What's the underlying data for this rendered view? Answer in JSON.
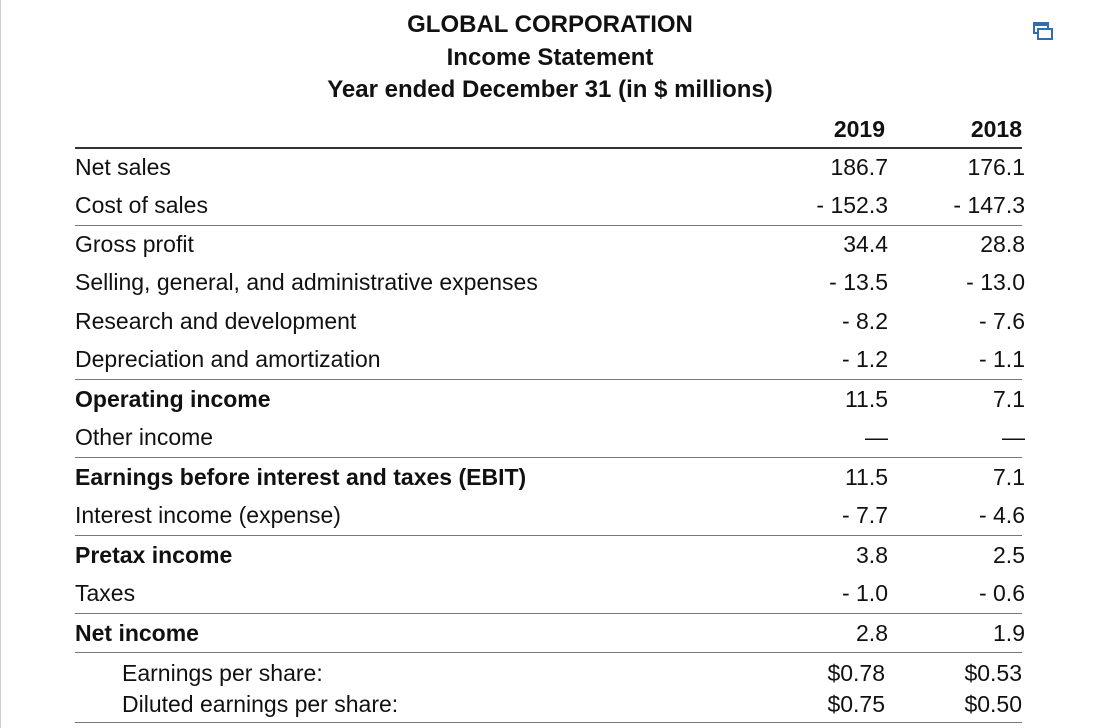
{
  "header": {
    "company": "GLOBAL  CORPORATION",
    "statement": "Income Statement",
    "period": "Year ended December 31 (in $ millions)"
  },
  "columns": {
    "year1": "2019",
    "year2": "2018"
  },
  "rows": [
    {
      "label": "Net sales",
      "v1": "186.7",
      "v2": "176.1"
    },
    {
      "label": "Cost of sales",
      "v1": "- 152.3",
      "v2": "- 147.3"
    },
    {
      "label": "Gross profit",
      "v1": "34.4",
      "v2": "28.8"
    },
    {
      "label": "Selling, general, and administrative expenses",
      "v1": "- 13.5",
      "v2": "- 13.0"
    },
    {
      "label": "Research and development",
      "v1": "- 8.2",
      "v2": "- 7.6"
    },
    {
      "label": "Depreciation and amortization",
      "v1": "- 1.2",
      "v2": "- 1.1"
    },
    {
      "label": "Operating income",
      "v1": "11.5",
      "v2": "7.1"
    },
    {
      "label": "Other income",
      "v1": "—",
      "v2": "—"
    },
    {
      "label": "Earnings before interest and taxes (EBIT)",
      "v1": "11.5",
      "v2": "7.1"
    },
    {
      "label": "Interest income (expense)",
      "v1": "- 7.7",
      "v2": "- 4.6"
    },
    {
      "label": "Pretax income",
      "v1": "3.8",
      "v2": "2.5"
    },
    {
      "label": "Taxes",
      "v1": "- 1.0",
      "v2": "- 0.6"
    },
    {
      "label": "Net income",
      "v1": "2.8",
      "v2": "1.9"
    }
  ],
  "eps": {
    "basic_label": "Earnings per share:",
    "basic_v1": "$0.78",
    "basic_v2": "$0.53",
    "diluted_label": "Diluted earnings per share:",
    "diluted_v1": "$0.75",
    "diluted_v2": "$0.50"
  },
  "icons": {
    "copy": "copy-icon"
  }
}
